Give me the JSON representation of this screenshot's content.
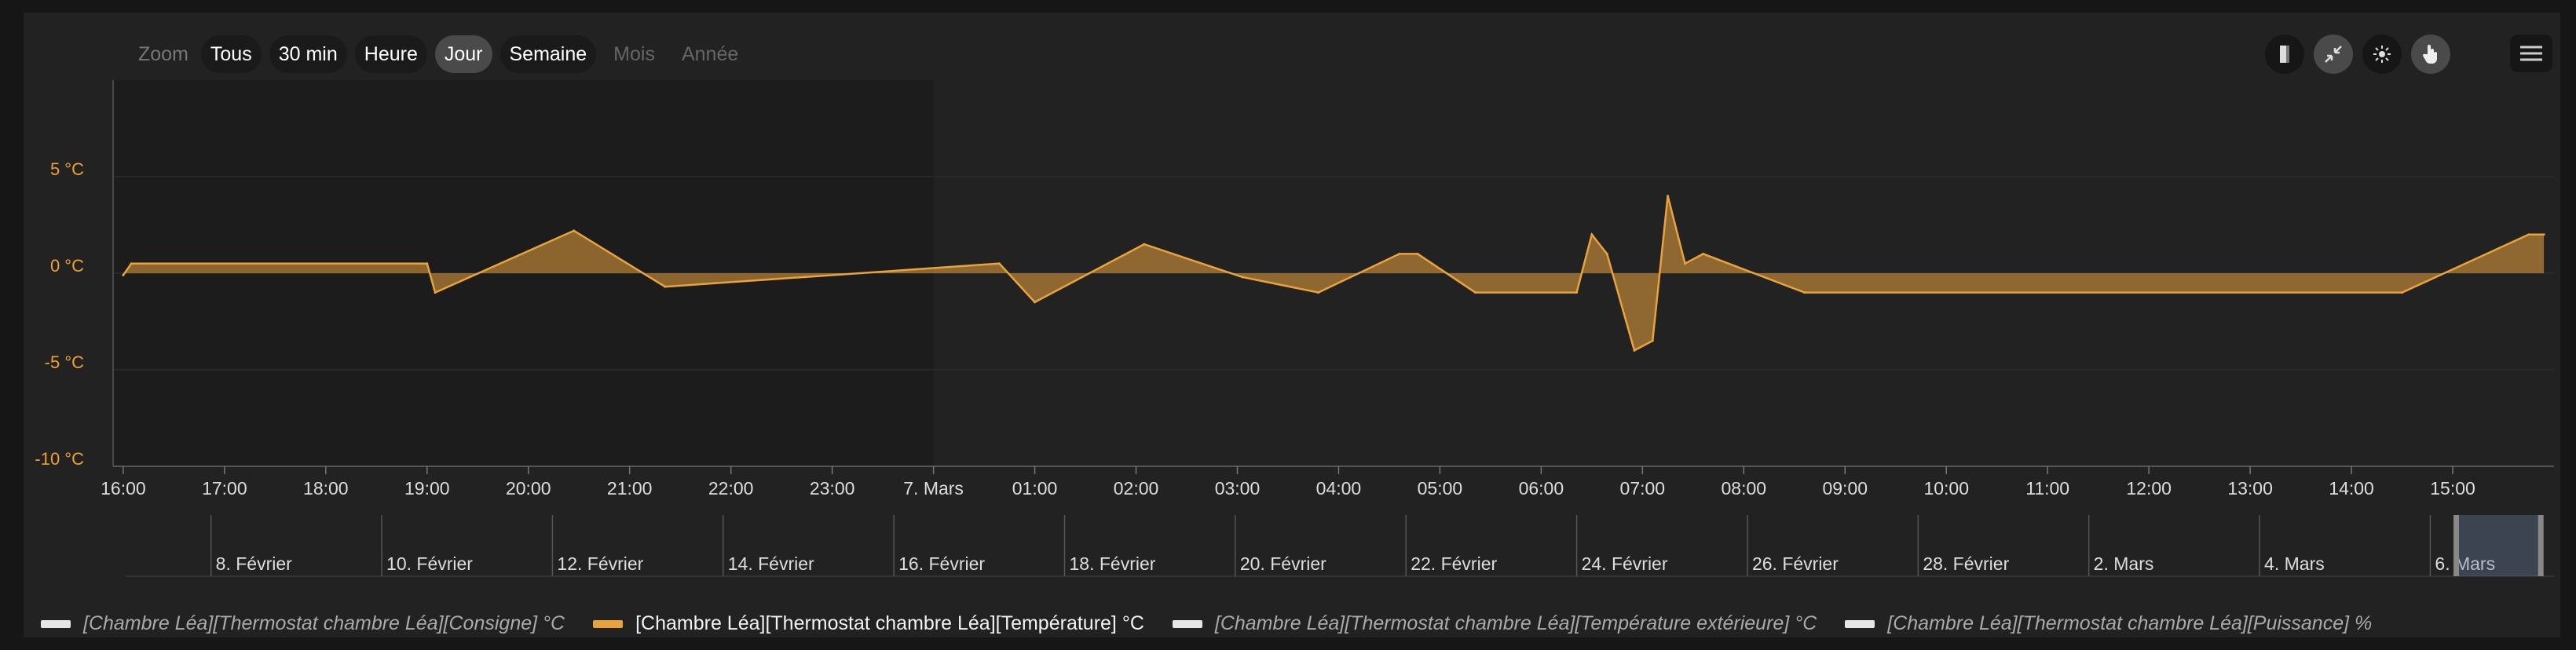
{
  "zoom": {
    "label": "Zoom",
    "buttons": [
      {
        "label": "Tous",
        "state": "normal"
      },
      {
        "label": "30 min",
        "state": "normal"
      },
      {
        "label": "Heure",
        "state": "normal"
      },
      {
        "label": "Jour",
        "state": "active"
      },
      {
        "label": "Semaine",
        "state": "normal"
      },
      {
        "label": "Mois",
        "state": "disabled"
      },
      {
        "label": "Année",
        "state": "disabled"
      }
    ]
  },
  "toolbar": {
    "icons": [
      "bar-chart-icon",
      "compress-icon",
      "brightness-icon",
      "pan-hand-icon"
    ],
    "selected": [
      "compress-icon",
      "pan-hand-icon"
    ],
    "menu_icon": "hamburger-menu-icon"
  },
  "colors": {
    "temperature": "#e8a33c",
    "inactive_series": "#e6e6e6",
    "y_axis_label": "#f0a030",
    "background": "#222222"
  },
  "chart_data": {
    "type": "area",
    "ylim": [
      -10,
      10
    ],
    "y_ticks": [
      {
        "value": 5,
        "label": "5 °C"
      },
      {
        "value": 0,
        "label": "0 °C"
      },
      {
        "value": -5,
        "label": "-5 °C"
      },
      {
        "value": -10,
        "label": "-10 °C"
      }
    ],
    "x_range": [
      15.9,
      40.0
    ],
    "x_ticks": [
      {
        "h": 16,
        "label": "16:00"
      },
      {
        "h": 17,
        "label": "17:00"
      },
      {
        "h": 18,
        "label": "18:00"
      },
      {
        "h": 19,
        "label": "19:00"
      },
      {
        "h": 20,
        "label": "20:00"
      },
      {
        "h": 21,
        "label": "21:00"
      },
      {
        "h": 22,
        "label": "22:00"
      },
      {
        "h": 23,
        "label": "23:00"
      },
      {
        "h": 24,
        "label": "7. Mars"
      },
      {
        "h": 25,
        "label": "01:00"
      },
      {
        "h": 26,
        "label": "02:00"
      },
      {
        "h": 27,
        "label": "03:00"
      },
      {
        "h": 28,
        "label": "04:00"
      },
      {
        "h": 29,
        "label": "05:00"
      },
      {
        "h": 30,
        "label": "06:00"
      },
      {
        "h": 31,
        "label": "07:00"
      },
      {
        "h": 32,
        "label": "08:00"
      },
      {
        "h": 33,
        "label": "09:00"
      },
      {
        "h": 34,
        "label": "10:00"
      },
      {
        "h": 35,
        "label": "11:00"
      },
      {
        "h": 36,
        "label": "12:00"
      },
      {
        "h": 37,
        "label": "13:00"
      },
      {
        "h": 38,
        "label": "14:00"
      },
      {
        "h": 39,
        "label": "15:00"
      }
    ],
    "night_shade": [
      15.9,
      24.0
    ],
    "series": [
      {
        "name": "[Chambre Léa][Thermostat chambre Léa][Température] °C",
        "points": [
          [
            16.0,
            -0.1
          ],
          [
            16.08,
            0.5
          ],
          [
            19.0,
            0.5
          ],
          [
            19.08,
            -1.0
          ],
          [
            20.45,
            2.2
          ],
          [
            21.35,
            -0.7
          ],
          [
            24.65,
            0.5
          ],
          [
            25.0,
            -1.5
          ],
          [
            26.08,
            1.5
          ],
          [
            27.05,
            -0.2
          ],
          [
            27.8,
            -1.0
          ],
          [
            28.6,
            1.0
          ],
          [
            28.78,
            1.0
          ],
          [
            29.35,
            -1.0
          ],
          [
            30.35,
            -1.0
          ],
          [
            30.5,
            2.0
          ],
          [
            30.65,
            1.0
          ],
          [
            30.92,
            -4.0
          ],
          [
            31.1,
            -3.5
          ],
          [
            31.25,
            4.0
          ],
          [
            31.42,
            0.5
          ],
          [
            31.6,
            1.0
          ],
          [
            32.6,
            -1.0
          ],
          [
            38.5,
            -1.0
          ],
          [
            39.75,
            2.0
          ],
          [
            39.9,
            2.0
          ]
        ]
      }
    ],
    "navigator": {
      "labels": [
        "8. Février",
        "10. Février",
        "12. Février",
        "14. Février",
        "16. Février",
        "18. Février",
        "20. Février",
        "22. Février",
        "24. Février",
        "26. Février",
        "28. Février",
        "2. Mars",
        "4. Mars",
        "6. Mars"
      ],
      "label_start_day": 8,
      "day_span": [
        7.0,
        35.45
      ],
      "selection_days": [
        34.3,
        35.3
      ]
    }
  },
  "legend": [
    {
      "label": "[Chambre Léa][Thermostat chambre Léa][Consigne] °C",
      "color": "#e6e6e6",
      "visible": false
    },
    {
      "label": "[Chambre Léa][Thermostat chambre Léa][Température] °C",
      "color": "#e8a33c",
      "visible": true
    },
    {
      "label": "[Chambre Léa][Thermostat chambre Léa][Température extérieure] °C",
      "color": "#e6e6e6",
      "visible": false
    },
    {
      "label": "[Chambre Léa][Thermostat chambre Léa][Puissance] %",
      "color": "#e6e6e6",
      "visible": false
    }
  ]
}
